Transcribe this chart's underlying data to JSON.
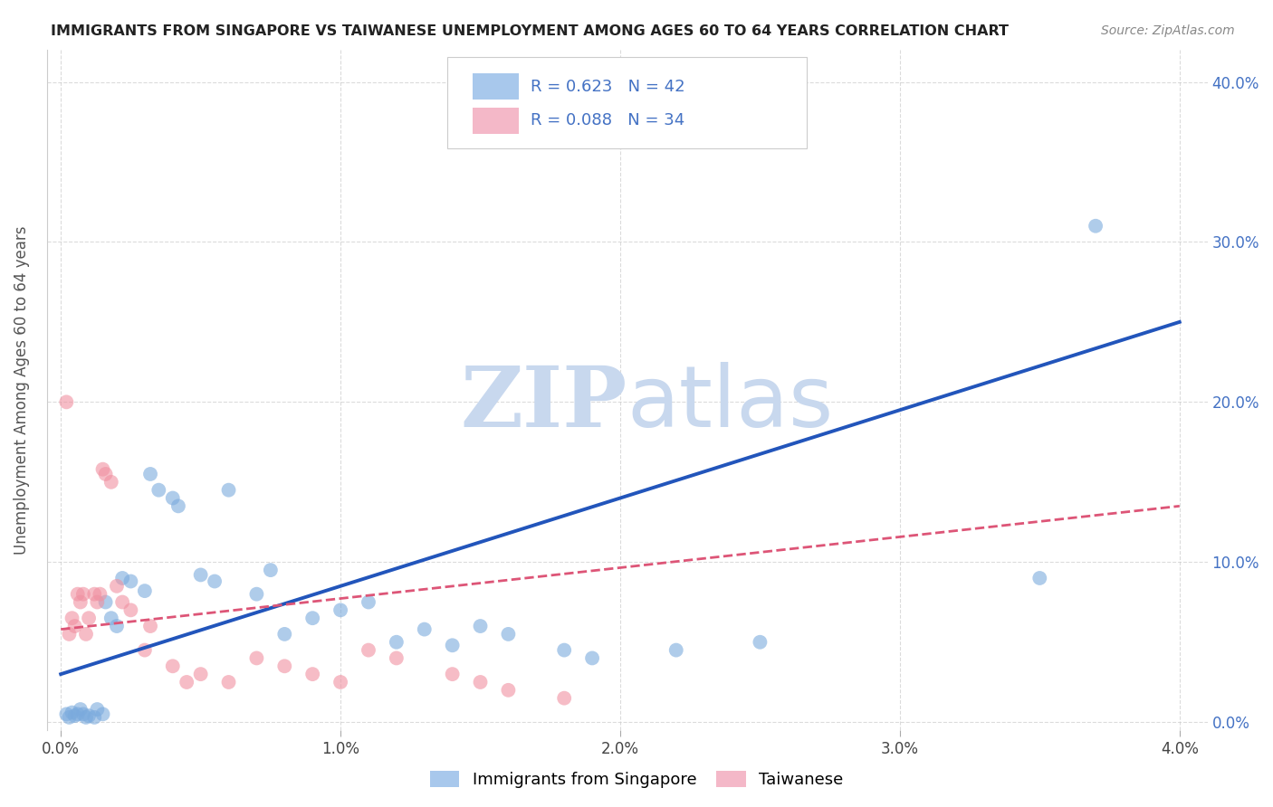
{
  "title": "IMMIGRANTS FROM SINGAPORE VS TAIWANESE UNEMPLOYMENT AMONG AGES 60 TO 64 YEARS CORRELATION CHART",
  "source": "Source: ZipAtlas.com",
  "xlabel_ticks": [
    "0.0%",
    "1.0%",
    "2.0%",
    "3.0%",
    "4.0%"
  ],
  "xlabel_vals": [
    0.0,
    0.01,
    0.02,
    0.03,
    0.04
  ],
  "ylabel_ticks": [
    "0.0%",
    "10.0%",
    "20.0%",
    "30.0%",
    "40.0%"
  ],
  "ylabel_vals": [
    0.0,
    0.1,
    0.2,
    0.3,
    0.4
  ],
  "xlim": [
    -0.0005,
    0.041
  ],
  "ylim": [
    -0.005,
    0.42
  ],
  "ylabel": "Unemployment Among Ages 60 to 64 years",
  "singapore_scatter": [
    [
      0.0002,
      0.005
    ],
    [
      0.0003,
      0.003
    ],
    [
      0.0004,
      0.006
    ],
    [
      0.0005,
      0.004
    ],
    [
      0.0006,
      0.005
    ],
    [
      0.0007,
      0.008
    ],
    [
      0.0008,
      0.005
    ],
    [
      0.0009,
      0.003
    ],
    [
      0.001,
      0.004
    ],
    [
      0.0012,
      0.003
    ],
    [
      0.0013,
      0.008
    ],
    [
      0.0015,
      0.005
    ],
    [
      0.0016,
      0.075
    ],
    [
      0.0018,
      0.065
    ],
    [
      0.002,
      0.06
    ],
    [
      0.0022,
      0.09
    ],
    [
      0.0025,
      0.088
    ],
    [
      0.003,
      0.082
    ],
    [
      0.0032,
      0.155
    ],
    [
      0.0035,
      0.145
    ],
    [
      0.004,
      0.14
    ],
    [
      0.0042,
      0.135
    ],
    [
      0.005,
      0.092
    ],
    [
      0.0055,
      0.088
    ],
    [
      0.006,
      0.145
    ],
    [
      0.007,
      0.08
    ],
    [
      0.0075,
      0.095
    ],
    [
      0.008,
      0.055
    ],
    [
      0.009,
      0.065
    ],
    [
      0.01,
      0.07
    ],
    [
      0.011,
      0.075
    ],
    [
      0.012,
      0.05
    ],
    [
      0.013,
      0.058
    ],
    [
      0.014,
      0.048
    ],
    [
      0.015,
      0.06
    ],
    [
      0.016,
      0.055
    ],
    [
      0.018,
      0.045
    ],
    [
      0.019,
      0.04
    ],
    [
      0.022,
      0.045
    ],
    [
      0.025,
      0.05
    ],
    [
      0.035,
      0.09
    ],
    [
      0.037,
      0.31
    ]
  ],
  "taiwanese_scatter": [
    [
      0.0002,
      0.2
    ],
    [
      0.0003,
      0.055
    ],
    [
      0.0004,
      0.065
    ],
    [
      0.0005,
      0.06
    ],
    [
      0.0006,
      0.08
    ],
    [
      0.0007,
      0.075
    ],
    [
      0.0008,
      0.08
    ],
    [
      0.0009,
      0.055
    ],
    [
      0.001,
      0.065
    ],
    [
      0.0012,
      0.08
    ],
    [
      0.0013,
      0.075
    ],
    [
      0.0014,
      0.08
    ],
    [
      0.0015,
      0.158
    ],
    [
      0.0016,
      0.155
    ],
    [
      0.0018,
      0.15
    ],
    [
      0.002,
      0.085
    ],
    [
      0.0022,
      0.075
    ],
    [
      0.0025,
      0.07
    ],
    [
      0.003,
      0.045
    ],
    [
      0.0032,
      0.06
    ],
    [
      0.004,
      0.035
    ],
    [
      0.0045,
      0.025
    ],
    [
      0.005,
      0.03
    ],
    [
      0.006,
      0.025
    ],
    [
      0.007,
      0.04
    ],
    [
      0.008,
      0.035
    ],
    [
      0.009,
      0.03
    ],
    [
      0.01,
      0.025
    ],
    [
      0.011,
      0.045
    ],
    [
      0.012,
      0.04
    ],
    [
      0.014,
      0.03
    ],
    [
      0.015,
      0.025
    ],
    [
      0.016,
      0.02
    ],
    [
      0.018,
      0.015
    ]
  ],
  "singapore_line_x": [
    0.0,
    0.04
  ],
  "singapore_line_y": [
    0.03,
    0.25
  ],
  "taiwanese_line_x": [
    0.0,
    0.04
  ],
  "taiwanese_line_y": [
    0.058,
    0.135
  ],
  "singapore_dot_color": "#7aaadd",
  "taiwanese_dot_color": "#f090a0",
  "singapore_line_color": "#2255bb",
  "taiwanese_line_color": "#dd5577",
  "watermark_zip": "ZIP",
  "watermark_atlas": "atlas",
  "watermark_color": "#c8d8ee",
  "background_color": "#ffffff",
  "grid_color": "#cccccc",
  "legend_blue_patch": "#a8c8ec",
  "legend_pink_patch": "#f4b8c8",
  "legend_r1": "R = 0.623",
  "legend_n1": "N = 42",
  "legend_r2": "R = 0.088",
  "legend_n2": "N = 34",
  "legend_text_color": "#333333",
  "legend_rn_color": "#4472c4",
  "bottom_legend_blue": "#a8c8ec",
  "bottom_legend_pink": "#f4b8c8",
  "bottom_label1": "Immigrants from Singapore",
  "bottom_label2": "Taiwanese"
}
